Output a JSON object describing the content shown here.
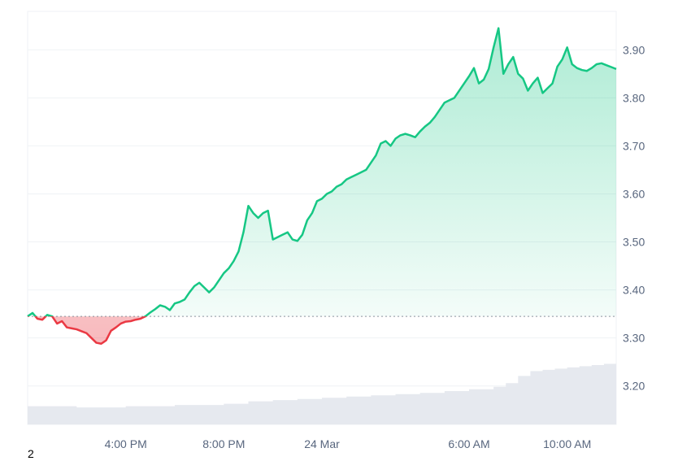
{
  "chart_data": {
    "type": "area",
    "title": "",
    "xlabel": "",
    "ylabel": "",
    "x_ticks": [
      "4:00 PM",
      "8:00 PM",
      "24 Mar",
      "6:00 AM",
      "10:00 AM"
    ],
    "y_ticks": [
      "3.20",
      "3.30",
      "3.40",
      "3.50",
      "3.60",
      "3.70",
      "3.80",
      "3.90"
    ],
    "ylim": [
      3.12,
      3.98
    ],
    "xlim_hours": [
      0,
      24
    ],
    "baseline": 3.345,
    "grid": true,
    "y_axis_side": "right",
    "colors": {
      "up_line": "#16c784",
      "down_line": "#ea3943",
      "up_fill": "#16c784",
      "down_fill": "#ea3943",
      "grid": "#eff2f5",
      "volume": "#e6e9ef",
      "baseline": "#8a939f"
    },
    "price_series": {
      "name": "",
      "x": [
        0,
        0.2,
        0.4,
        0.6,
        0.8,
        1.0,
        1.2,
        1.4,
        1.6,
        1.8,
        2.0,
        2.2,
        2.4,
        2.6,
        2.8,
        3.0,
        3.2,
        3.4,
        3.6,
        3.8,
        4.0,
        4.2,
        4.4,
        4.6,
        4.8,
        5.0,
        5.2,
        5.4,
        5.6,
        5.8,
        6.0,
        6.2,
        6.4,
        6.6,
        6.8,
        7.0,
        7.2,
        7.4,
        7.6,
        7.8,
        8.0,
        8.2,
        8.4,
        8.6,
        8.8,
        9.0,
        9.2,
        9.4,
        9.6,
        9.8,
        10.0,
        10.2,
        10.4,
        10.6,
        10.8,
        11.0,
        11.2,
        11.4,
        11.6,
        11.8,
        12.0,
        12.2,
        12.4,
        12.6,
        12.8,
        13.0,
        13.2,
        13.4,
        13.6,
        13.8,
        14.0,
        14.2,
        14.4,
        14.6,
        14.8,
        15.0,
        15.2,
        15.4,
        15.6,
        15.8,
        16.0,
        16.2,
        16.4,
        16.6,
        16.8,
        17.0,
        17.2,
        17.4,
        17.6,
        17.8,
        18.0,
        18.2,
        18.4,
        18.6,
        18.8,
        19.0,
        19.2,
        19.4,
        19.6,
        19.8,
        20.0,
        20.2,
        20.4,
        20.6,
        20.8,
        21.0,
        21.2,
        21.4,
        21.6,
        21.8,
        22.0,
        22.2,
        22.4,
        22.6,
        22.8,
        23.0,
        23.2,
        23.4,
        23.6,
        23.8,
        24.0
      ],
      "values": [
        3.345,
        3.352,
        3.34,
        3.338,
        3.348,
        3.345,
        3.33,
        3.335,
        3.322,
        3.32,
        3.318,
        3.314,
        3.31,
        3.3,
        3.29,
        3.288,
        3.295,
        3.315,
        3.322,
        3.33,
        3.334,
        3.335,
        3.338,
        3.34,
        3.345,
        3.353,
        3.36,
        3.368,
        3.365,
        3.358,
        3.372,
        3.375,
        3.38,
        3.395,
        3.408,
        3.415,
        3.405,
        3.395,
        3.405,
        3.42,
        3.435,
        3.445,
        3.46,
        3.48,
        3.52,
        3.575,
        3.56,
        3.55,
        3.56,
        3.565,
        3.505,
        3.51,
        3.515,
        3.52,
        3.505,
        3.502,
        3.515,
        3.545,
        3.56,
        3.585,
        3.59,
        3.6,
        3.605,
        3.615,
        3.62,
        3.63,
        3.635,
        3.64,
        3.645,
        3.65,
        3.665,
        3.68,
        3.705,
        3.71,
        3.7,
        3.715,
        3.722,
        3.725,
        3.722,
        3.718,
        3.73,
        3.74,
        3.748,
        3.76,
        3.775,
        3.79,
        3.795,
        3.8,
        3.815,
        3.83,
        3.845,
        3.862,
        3.83,
        3.838,
        3.86,
        3.905,
        3.945,
        3.85,
        3.87,
        3.885,
        3.85,
        3.84,
        3.815,
        3.83,
        3.842,
        3.81,
        3.82,
        3.83,
        3.865,
        3.88,
        3.905,
        3.87,
        3.862,
        3.858,
        3.856,
        3.862,
        3.87,
        3.872,
        3.868,
        3.864,
        3.86
      ]
    },
    "volume_series": {
      "name": "",
      "x": [
        0,
        2,
        4,
        6,
        8,
        9,
        10,
        11,
        12,
        13,
        14,
        15,
        16,
        17,
        18,
        19,
        19.5,
        20,
        20.5,
        21,
        21.5,
        22,
        22.5,
        23,
        23.5,
        24
      ],
      "values": [
        0.3,
        0.28,
        0.3,
        0.32,
        0.34,
        0.38,
        0.4,
        0.42,
        0.44,
        0.46,
        0.48,
        0.5,
        0.52,
        0.55,
        0.58,
        0.62,
        0.68,
        0.8,
        0.88,
        0.9,
        0.92,
        0.94,
        0.96,
        0.98,
        1.0,
        1.02
      ]
    }
  },
  "footnote": "2"
}
